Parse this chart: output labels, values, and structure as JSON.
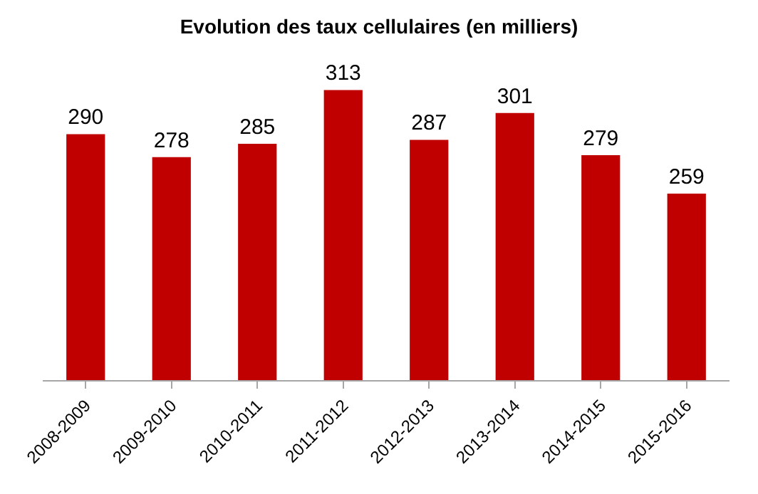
{
  "chart_data": {
    "type": "bar",
    "title": "Evolution des taux cellulaires (en milliers)",
    "categories": [
      "2008-2009",
      "2009-2010",
      "2010-2011",
      "2011-2012",
      "2012-2013",
      "2013-2014",
      "2014-2015",
      "2015-2016"
    ],
    "values": [
      290,
      278,
      285,
      313,
      287,
      301,
      279,
      259
    ],
    "color": "#c00000",
    "data_labels": true,
    "tick_labels": "x"
  }
}
